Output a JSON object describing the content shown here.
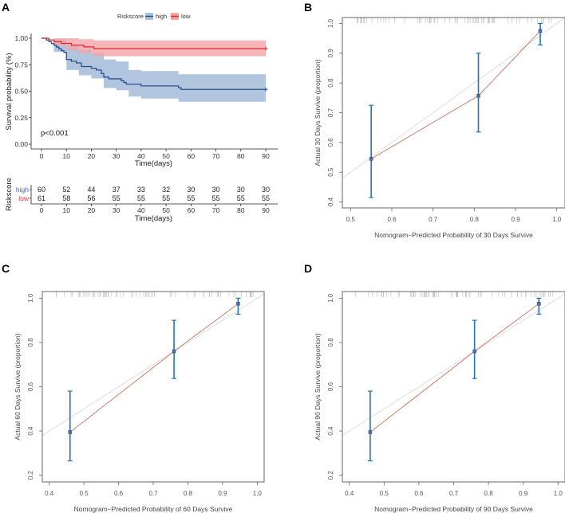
{
  "figure": {
    "panels": [
      "A",
      "B",
      "C",
      "D"
    ]
  },
  "chart_data": [
    {
      "panel": "A",
      "type": "line",
      "subtype": "kaplan-meier",
      "title": "",
      "xlabel": "Time(days)",
      "ylabel": "Survival probability (%)",
      "xlim": [
        0,
        90
      ],
      "ylim": [
        0,
        1
      ],
      "xticks": [
        "0",
        "10",
        "20",
        "30",
        "40",
        "50",
        "60",
        "70",
        "80",
        "90"
      ],
      "yticks": [
        "0.00",
        "0.25",
        "0.50",
        "0.75",
        "1.00"
      ],
      "legend": {
        "title": "Riskscore",
        "position": "top",
        "entries": [
          "high",
          "low"
        ]
      },
      "annotation": "p<0.001",
      "colors": {
        "high": "#2a4f8f",
        "low": "#e0262f",
        "high_band": "#a9bfdc",
        "low_band": "#f4a3a6"
      },
      "series": [
        {
          "name": "high",
          "steps": [
            [
              0,
              1.0
            ],
            [
              2,
              0.983
            ],
            [
              3,
              0.967
            ],
            [
              4,
              0.95
            ],
            [
              5,
              0.933
            ],
            [
              6,
              0.917
            ],
            [
              7,
              0.9
            ],
            [
              8,
              0.883
            ],
            [
              9,
              0.867
            ],
            [
              10,
              0.8
            ],
            [
              12,
              0.783
            ],
            [
              14,
              0.767
            ],
            [
              16,
              0.733
            ],
            [
              20,
              0.717
            ],
            [
              22,
              0.7
            ],
            [
              24,
              0.667
            ],
            [
              25,
              0.633
            ],
            [
              27,
              0.617
            ],
            [
              32,
              0.6
            ],
            [
              33,
              0.583
            ],
            [
              34,
              0.567
            ],
            [
              40,
              0.55
            ],
            [
              55,
              0.533
            ],
            [
              56,
              0.517
            ],
            [
              90,
              0.517
            ]
          ],
          "lower": [
            [
              0,
              1.0
            ],
            [
              5,
              0.87
            ],
            [
              10,
              0.7
            ],
            [
              15,
              0.65
            ],
            [
              20,
              0.62
            ],
            [
              25,
              0.53
            ],
            [
              30,
              0.51
            ],
            [
              35,
              0.45
            ],
            [
              40,
              0.43
            ],
            [
              55,
              0.4
            ],
            [
              90,
              0.4
            ]
          ],
          "upper": [
            [
              0,
              1.0
            ],
            [
              5,
              0.99
            ],
            [
              10,
              0.93
            ],
            [
              15,
              0.89
            ],
            [
              20,
              0.86
            ],
            [
              25,
              0.8
            ],
            [
              30,
              0.78
            ],
            [
              35,
              0.7
            ],
            [
              40,
              0.69
            ],
            [
              55,
              0.66
            ],
            [
              90,
              0.66
            ]
          ]
        },
        {
          "name": "low",
          "steps": [
            [
              0,
              1.0
            ],
            [
              3,
              0.984
            ],
            [
              5,
              0.967
            ],
            [
              8,
              0.951
            ],
            [
              12,
              0.934
            ],
            [
              17,
              0.918
            ],
            [
              21,
              0.902
            ],
            [
              90,
              0.902
            ]
          ],
          "lower": [
            [
              0,
              1.0
            ],
            [
              5,
              0.93
            ],
            [
              10,
              0.89
            ],
            [
              15,
              0.86
            ],
            [
              21,
              0.83
            ],
            [
              90,
              0.83
            ]
          ],
          "upper": [
            [
              0,
              1.0
            ],
            [
              5,
              1.0
            ],
            [
              10,
              1.0
            ],
            [
              15,
              0.99
            ],
            [
              21,
              0.98
            ],
            [
              90,
              0.98
            ]
          ]
        }
      ],
      "risk_table": {
        "title": "Riskscore",
        "xlabel": "Time(days)",
        "times": [
          "0",
          "10",
          "20",
          "30",
          "40",
          "50",
          "60",
          "70",
          "80",
          "90"
        ],
        "rows": [
          {
            "label": "high",
            "values": [
              "60",
              "52",
              "44",
              "37",
              "33",
              "32",
              "30",
              "30",
              "30",
              "30"
            ]
          },
          {
            "label": "low",
            "values": [
              "61",
              "58",
              "56",
              "55",
              "55",
              "55",
              "55",
              "55",
              "55",
              "55"
            ]
          }
        ]
      }
    },
    {
      "panel": "B",
      "type": "scatter",
      "subtype": "calibration",
      "xlabel": "Nomogram−Predicted Probability of 30 Days Survive",
      "ylabel": "Actual 30 Days Survive (proportion)",
      "xlim": [
        0.48,
        1.02
      ],
      "ylim": [
        0.38,
        1.02
      ],
      "xticks": [
        "0.5",
        "0.6",
        "0.7",
        "0.8",
        "0.9",
        "1.0"
      ],
      "yticks": [
        "0.4",
        "0.5",
        "0.6",
        "0.7",
        "0.8",
        "0.9",
        "1.0"
      ],
      "points": [
        {
          "x": 0.55,
          "y": 0.545,
          "lo": 0.415,
          "hi": 0.725
        },
        {
          "x": 0.81,
          "y": 0.757,
          "lo": 0.635,
          "hi": 0.9
        },
        {
          "x": 0.96,
          "y": 0.975,
          "lo": 0.928,
          "hi": 1.0
        }
      ]
    },
    {
      "panel": "C",
      "type": "scatter",
      "subtype": "calibration",
      "xlabel": "Nomogram−Predicted Probability of 60 Days Survive",
      "ylabel": "Actual 60 Days Survive (proportion)",
      "xlim": [
        0.38,
        1.02
      ],
      "ylim": [
        0.17,
        1.03
      ],
      "xticks": [
        "0.4",
        "0.5",
        "0.6",
        "0.7",
        "0.8",
        "0.9",
        "1.0"
      ],
      "yticks": [
        "0.2",
        "0.4",
        "0.6",
        "0.8",
        "1.0"
      ],
      "points": [
        {
          "x": 0.46,
          "y": 0.395,
          "lo": 0.265,
          "hi": 0.58
        },
        {
          "x": 0.76,
          "y": 0.76,
          "lo": 0.637,
          "hi": 0.9
        },
        {
          "x": 0.945,
          "y": 0.975,
          "lo": 0.928,
          "hi": 1.0
        }
      ]
    },
    {
      "panel": "D",
      "type": "scatter",
      "subtype": "calibration",
      "xlabel": "Nomogram−Predicted Probability of 90 Days Survive",
      "ylabel": "Actual 90 Days Survive (proportion)",
      "xlim": [
        0.38,
        1.02
      ],
      "ylim": [
        0.17,
        1.03
      ],
      "xticks": [
        "0.4",
        "0.5",
        "0.6",
        "0.7",
        "0.8",
        "0.9",
        "1.0"
      ],
      "yticks": [
        "0.2",
        "0.4",
        "0.6",
        "0.8",
        "1.0"
      ],
      "points": [
        {
          "x": 0.46,
          "y": 0.395,
          "lo": 0.265,
          "hi": 0.58
        },
        {
          "x": 0.76,
          "y": 0.76,
          "lo": 0.637,
          "hi": 0.9
        },
        {
          "x": 0.945,
          "y": 0.975,
          "lo": 0.928,
          "hi": 1.0
        }
      ]
    }
  ]
}
